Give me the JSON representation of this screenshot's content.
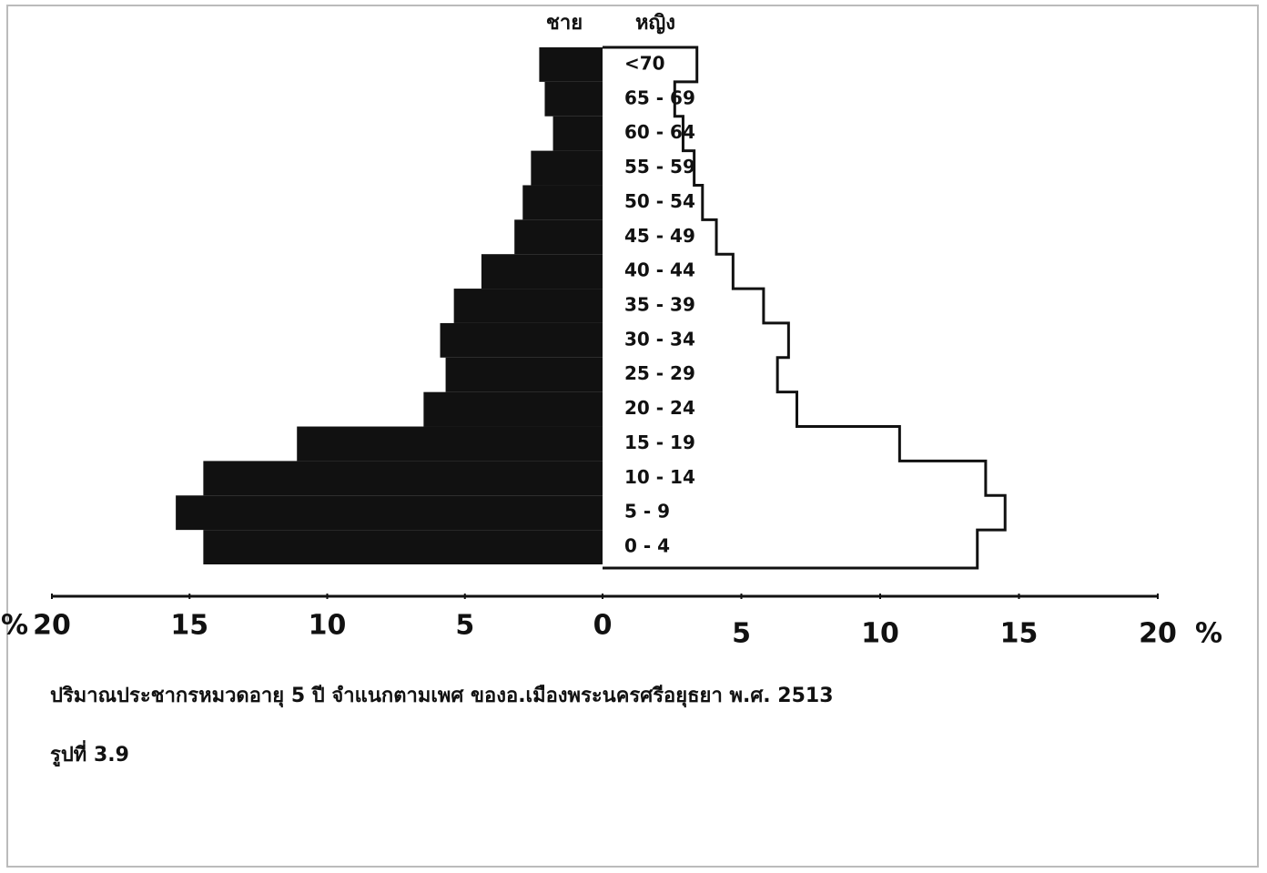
{
  "chart_data": {
    "type": "population-pyramid",
    "left_label": "ชาย",
    "right_label": "หญิง",
    "categories": [
      "0 - 4",
      "5 - 9",
      "10 - 14",
      "15 - 19",
      "20 - 24",
      "25 - 29",
      "30 - 34",
      "35 - 39",
      "40 - 44",
      "45 - 49",
      "50 - 54",
      "55 - 59",
      "60 - 64",
      "65 - 69",
      "<70"
    ],
    "series": [
      {
        "name": "ชาย",
        "color": "#111111",
        "values": [
          14.5,
          15.5,
          14.5,
          11.1,
          6.5,
          5.7,
          5.9,
          5.4,
          4.4,
          3.2,
          2.9,
          2.6,
          1.8,
          2.1,
          2.3
        ]
      },
      {
        "name": "หญิง",
        "color": "#ffffff",
        "values": [
          13.5,
          14.5,
          13.8,
          10.7,
          7.0,
          6.3,
          6.7,
          5.8,
          4.7,
          4.1,
          3.6,
          3.3,
          2.9,
          2.6,
          3.4
        ]
      }
    ],
    "xlim": [
      -20,
      20
    ],
    "xticks": [
      {
        "value": -20,
        "label": "20"
      },
      {
        "value": -15,
        "label": "15"
      },
      {
        "value": -10,
        "label": "10"
      },
      {
        "value": -5,
        "label": "5"
      },
      0,
      5,
      10,
      15,
      20
    ],
    "x_unit_labels": [
      "%",
      "%"
    ],
    "caption": "ปริมาณประชากรหมวดอายุ  5  ปี   จำแนกตามเพศ  ของอ.เมืองพระนครศรีอยุธยา   พ.ศ. 2513",
    "figure_label": "รูปที่ 3.9"
  }
}
